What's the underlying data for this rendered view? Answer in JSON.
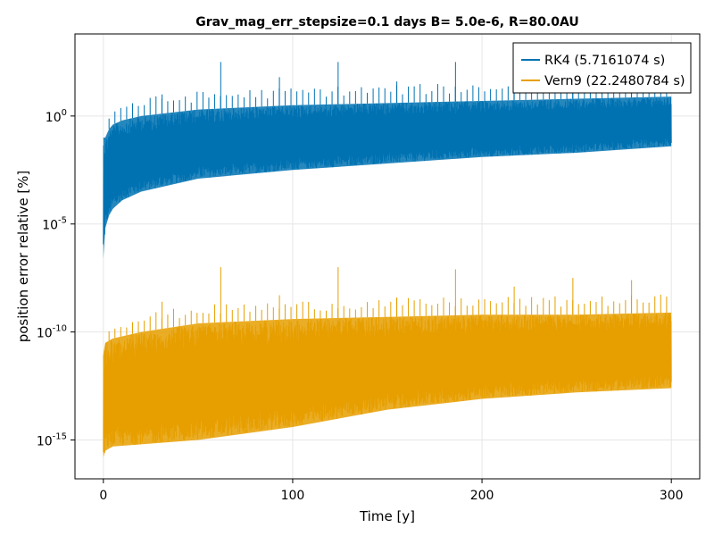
{
  "chart_data": {
    "type": "line",
    "title": "Grav_mag_err_stepsize=0.1 days B= 5.0e-6, R=80.0AU",
    "xlabel": "Time [y]",
    "ylabel": "position error relative [%]",
    "xlim": [
      -15,
      315
    ],
    "ylim_log10": [
      -16.8,
      3.8
    ],
    "y_scale": "log10",
    "x_ticks": [
      0,
      100,
      200,
      300
    ],
    "y_ticks": [
      {
        "exp": 0,
        "base": "10",
        "sup": "0"
      },
      {
        "exp": -5,
        "base": "10",
        "sup": "-5"
      },
      {
        "exp": -10,
        "base": "10",
        "sup": "-10"
      },
      {
        "exp": -15,
        "base": "10",
        "sup": "-15"
      }
    ],
    "grid": true,
    "legend_position": "top-right",
    "series": [
      {
        "name": "RK4 (5.7161074 s)",
        "color": "#0072b2",
        "envelope_log10": {
          "x": [
            0,
            1,
            3,
            5,
            10,
            20,
            50,
            100,
            150,
            200,
            250,
            300
          ],
          "lower": [
            -6.6,
            -5.2,
            -4.6,
            -4.3,
            -3.9,
            -3.5,
            -2.9,
            -2.5,
            -2.2,
            -1.9,
            -1.7,
            -1.4
          ],
          "upper": [
            -1.0,
            -1.0,
            -0.6,
            -0.4,
            -0.2,
            0.0,
            0.3,
            0.5,
            0.6,
            0.7,
            0.8,
            0.9
          ]
        },
        "spikes_log10": {
          "x": [
            31,
            62,
            93,
            124,
            155,
            186,
            217,
            248,
            279
          ],
          "y": [
            1.0,
            2.5,
            1.8,
            2.5,
            1.6,
            2.5,
            1.5,
            1.9,
            2.0
          ]
        }
      },
      {
        "name": "Vern9 (22.2480784 s)",
        "color": "#e69f00",
        "envelope_log10": {
          "x": [
            0,
            1,
            5,
            20,
            50,
            100,
            150,
            200,
            250,
            300
          ],
          "lower": [
            -15.8,
            -15.5,
            -15.3,
            -15.2,
            -15.0,
            -14.4,
            -13.6,
            -13.1,
            -12.8,
            -12.6
          ],
          "upper": [
            -11.0,
            -10.5,
            -10.3,
            -10.0,
            -9.6,
            -9.4,
            -9.3,
            -9.2,
            -9.2,
            -9.1
          ]
        },
        "spikes_log10": {
          "x": [
            31,
            62,
            93,
            124,
            155,
            186,
            217,
            248,
            279
          ],
          "y": [
            -8.6,
            -7.0,
            -8.3,
            -7.0,
            -8.4,
            -7.1,
            -7.9,
            -7.5,
            -7.6
          ]
        }
      }
    ]
  }
}
